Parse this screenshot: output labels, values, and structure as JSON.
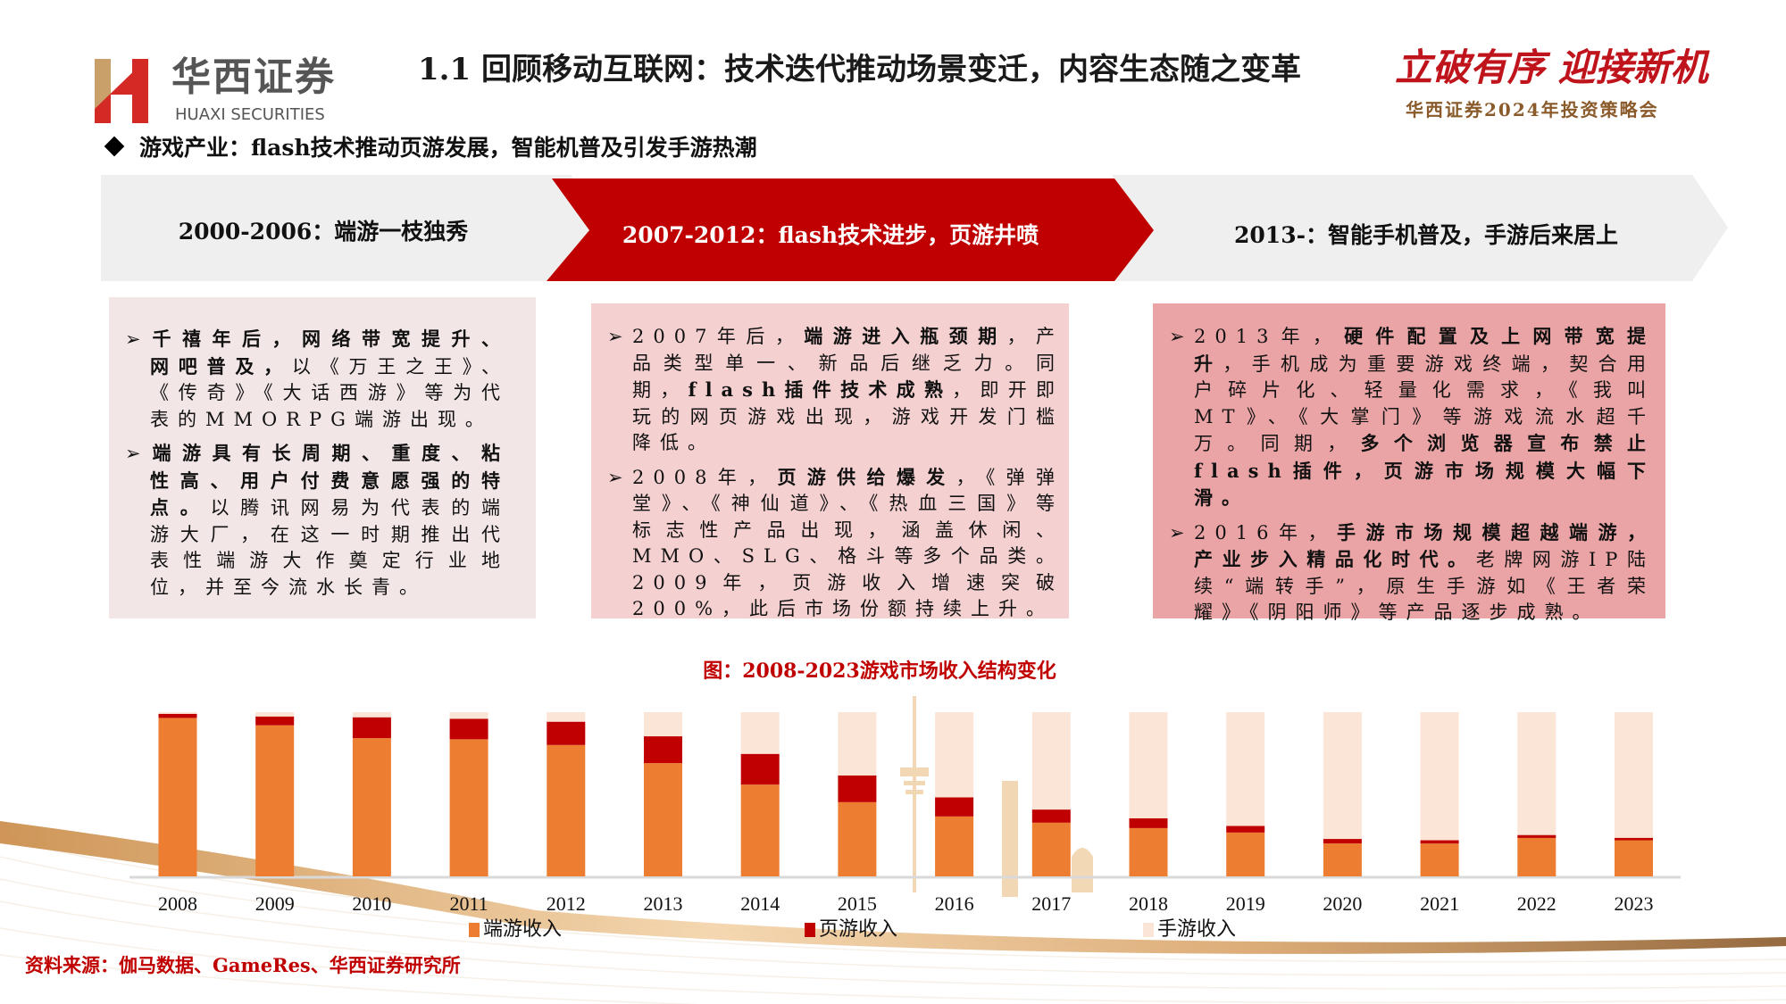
{
  "header": {
    "logo_cn": "华西证券",
    "logo_en": "HUAXI SECURITIES",
    "title": "1.1 回顾移动互联网：技术迭代推动场景变迁，内容生态随之变革",
    "slogan_main": "立破有序 迎接新机",
    "slogan_sub": "华西证券2024年投资策略会"
  },
  "subheading": "游戏产业：flash技术推动页游发展，智能机普及引发手游热潮",
  "stages": [
    {
      "label": "2000-2006：端游一枝独秀"
    },
    {
      "label": "2007-2012：flash技术进步，页游井喷"
    },
    {
      "label": "2013-：智能手机普及，手游后来居上"
    }
  ],
  "boxes": [
    {
      "bullets": [
        [
          {
            "t": "千禧年后，网络带宽提升、网吧普及，",
            "b": true
          },
          {
            "t": "以《万王之王》、《传奇》《大话西游》等为代表的MMORPG端游出现。",
            "b": false
          }
        ],
        [
          {
            "t": "端游具有长周期、重度、粘性高、用户付费意愿强的特点。",
            "b": true
          },
          {
            "t": "以腾讯网易为代表的端游大厂，在这一时期推出代表性端游大作奠定行业地位，并至今流水长青。",
            "b": false
          }
        ]
      ]
    },
    {
      "bullets": [
        [
          {
            "t": "2007年后，",
            "b": false
          },
          {
            "t": "端游进入瓶颈期",
            "b": true
          },
          {
            "t": "，产品类型单一、新品后继乏力。同期，",
            "b": false
          },
          {
            "t": "flash插件技术成熟",
            "b": true
          },
          {
            "t": "，即开即玩的网页游戏出现，游戏开发门槛降低。",
            "b": false
          }
        ],
        [
          {
            "t": "2008年，",
            "b": false
          },
          {
            "t": "页游供给爆发",
            "b": true
          },
          {
            "t": "，《弹弹堂》、《神仙道》、《热血三国》等标志性产品出现，涵盖休闲、MMO、SLG、格斗等多个品类。2009年，页游收入增速突破200%，此后市场份额持续上升。",
            "b": false
          }
        ]
      ]
    },
    {
      "bullets": [
        [
          {
            "t": "2013年，",
            "b": false
          },
          {
            "t": "硬件配置及上网带宽提升",
            "b": true
          },
          {
            "t": "，手机成为重要游戏终端，契合用户碎片化、轻量化需求，《我叫MT》、《大掌门》等游戏流水超千万。同期，",
            "b": false
          },
          {
            "t": "多个浏览器宣布禁止flash插件，页游市场规模大幅下滑。",
            "b": true
          }
        ],
        [
          {
            "t": "2016年，",
            "b": false
          },
          {
            "t": "手游市场规模超越端游，产业步入精品化时代。",
            "b": true
          },
          {
            "t": "老牌网游IP陆续“端转手”，原生手游如《王者荣耀》《阴阳师》等产品逐步成熟。",
            "b": false
          }
        ]
      ]
    }
  ],
  "chart_data": {
    "type": "bar",
    "stacked": true,
    "normalized_percent": true,
    "title": "图：2008-2023游戏市场收入结构变化",
    "categories": [
      "2008",
      "2009",
      "2010",
      "2011",
      "2012",
      "2013",
      "2014",
      "2015",
      "2016",
      "2017",
      "2018",
      "2019",
      "2020",
      "2021",
      "2022",
      "2023"
    ],
    "series": [
      {
        "name": "端游收入",
        "color": "#ed7d31",
        "values": [
          96.5,
          92.0,
          84.2,
          83.5,
          80.0,
          69.0,
          55.9,
          45.2,
          36.5,
          32.7,
          29.4,
          26.7,
          20.1,
          20.0,
          23.4,
          22.0
        ]
      },
      {
        "name": "页游收入",
        "color": "#c00000",
        "values": [
          2.5,
          5.4,
          12.7,
          12.5,
          14.2,
          16.3,
          18.7,
          16.3,
          11.6,
          8.0,
          6.0,
          4.0,
          2.7,
          2.0,
          1.8,
          1.5
        ]
      },
      {
        "name": "手游收入",
        "color": "#fbe5d6",
        "values": [
          1.0,
          2.6,
          3.1,
          4.0,
          5.8,
          14.7,
          25.4,
          38.5,
          51.9,
          59.3,
          64.6,
          69.3,
          77.2,
          78.0,
          74.8,
          76.5
        ]
      }
    ],
    "ylim": [
      0,
      100
    ],
    "legend": "bottom",
    "grid": false
  },
  "source": "资料来源：伽马数据、GameRes、华西证券研究所",
  "colors": {
    "brand_red": "#c00000",
    "stage_gray": "#efefef",
    "box1": "#f3e6e7",
    "box2": "#f4d0d1",
    "box3": "#eba4a6"
  }
}
